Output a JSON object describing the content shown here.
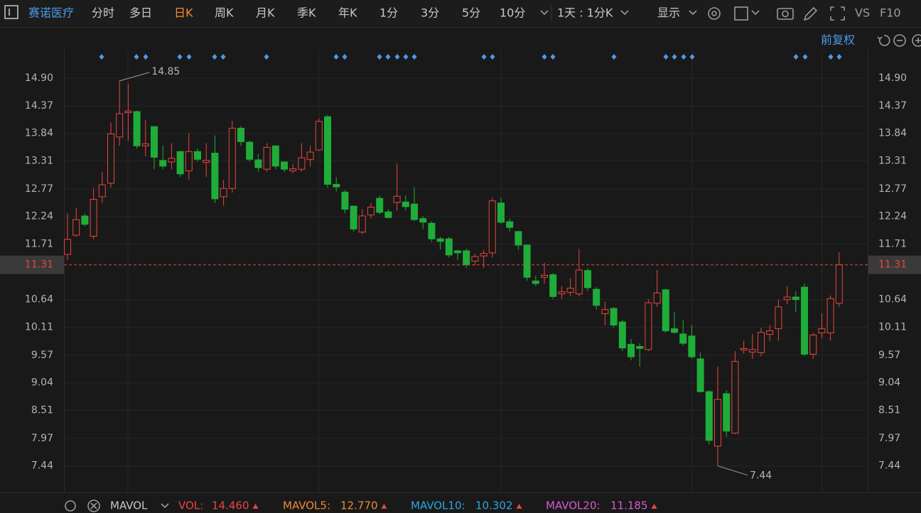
{
  "toolbar": {
    "stock": "赛诺医疗",
    "tabs": [
      "分时",
      "多日",
      "日K",
      "周K",
      "月K",
      "季K",
      "年K",
      "1分",
      "3分",
      "5分",
      "10分"
    ],
    "period": "1天 : 1分K",
    "display": "显示",
    "vs": "VS",
    "f10": "F10",
    "adjust": "前复权"
  },
  "indicator": {
    "name": "MAVOL",
    "items": [
      {
        "label": "VOL:",
        "value": "14.460",
        "color": "#e8463b"
      },
      {
        "label": "MAVOL5:",
        "value": "12.770",
        "color": "#f0892f"
      },
      {
        "label": "MAVOL10:",
        "value": "10.302",
        "color": "#2aa6e6"
      },
      {
        "label": "MAVOL20:",
        "value": "11.185",
        "color": "#d65bd6"
      }
    ]
  },
  "chart_data": {
    "type": "candlestick",
    "up_color": "#e8463b",
    "down_color": "#1fad3a",
    "grid": true,
    "ylim": [
      6.93,
      15.86
    ],
    "yticks": [
      {
        "value": 14.9,
        "label": "14.90"
      },
      14.37,
      13.84,
      13.31,
      12.77,
      12.24,
      11.71,
      10.64,
      10.11,
      9.57,
      9.04,
      8.51,
      7.97,
      7.44
    ],
    "open": [
      11.51,
      11.88,
      12.25,
      11.86,
      12.62,
      12.88,
      13.77,
      14.24,
      14.26,
      13.6,
      13.97,
      13.32,
      13.29,
      13.49,
      13.12,
      13.49,
      13.28,
      13.46,
      12.62,
      12.78,
      13.94,
      13.67,
      13.33,
      13.15,
      13.6,
      13.29,
      13.12,
      13.15,
      13.34,
      13.52,
      14.16,
      12.86,
      12.71,
      12.44,
      11.94,
      12.27,
      12.59,
      12.33,
      12.51,
      12.52,
      12.48,
      12.2,
      12.11,
      11.81,
      11.81,
      11.58,
      11.58,
      11.38,
      11.48,
      11.54,
      12.5,
      12.14,
      11.95,
      11.69,
      11.0,
      11.07,
      11.12,
      10.75,
      10.78,
      10.75,
      11.2,
      10.84,
      10.37,
      10.47,
      10.21,
      9.78,
      9.74,
      9.68,
      10.57,
      10.83,
      10.08,
      9.98,
      9.94,
      9.5,
      8.87,
      7.82,
      8.83,
      8.07,
      9.67,
      9.63,
      9.62,
      9.97,
      10.08,
      10.64,
      10.69,
      10.88,
      9.59,
      10.0,
      10.0,
      10.57
    ],
    "close": [
      11.8,
      12.18,
      12.09,
      12.57,
      12.85,
      13.83,
      14.22,
      14.27,
      13.6,
      13.64,
      13.38,
      13.21,
      13.36,
      13.06,
      13.49,
      13.34,
      13.32,
      12.58,
      12.78,
      13.94,
      13.68,
      13.34,
      13.18,
      13.57,
      13.21,
      13.15,
      13.16,
      13.37,
      13.48,
      14.07,
      12.86,
      12.81,
      12.38,
      12.0,
      12.25,
      12.42,
      12.32,
      12.22,
      12.63,
      12.43,
      12.18,
      12.13,
      11.81,
      11.76,
      11.5,
      11.54,
      11.31,
      11.47,
      11.53,
      12.54,
      12.13,
      12.03,
      11.69,
      11.07,
      10.95,
      11.11,
      10.7,
      10.79,
      10.86,
      11.21,
      10.87,
      10.53,
      10.45,
      10.15,
      9.71,
      9.54,
      9.7,
      10.58,
      10.77,
      10.04,
      10.01,
      9.8,
      9.54,
      8.87,
      7.93,
      8.72,
      8.11,
      9.45,
      9.7,
      9.68,
      10.01,
      10.04,
      10.5,
      10.69,
      10.64,
      9.59,
      9.96,
      10.08,
      10.66,
      11.31
    ],
    "high": [
      12.3,
      12.4,
      12.3,
      12.78,
      13.1,
      14.05,
      14.85,
      14.8,
      14.28,
      14.1,
      13.98,
      13.6,
      13.65,
      13.5,
      13.85,
      13.55,
      13.65,
      13.8,
      12.95,
      14.08,
      13.98,
      13.7,
      13.45,
      13.65,
      13.6,
      13.3,
      13.25,
      13.65,
      13.6,
      14.13,
      14.2,
      13.0,
      12.75,
      12.45,
      12.38,
      12.5,
      12.64,
      12.38,
      13.26,
      12.65,
      12.8,
      12.25,
      12.15,
      11.85,
      11.85,
      11.6,
      11.62,
      11.52,
      11.6,
      12.6,
      12.6,
      12.2,
      11.97,
      11.7,
      11.1,
      11.35,
      11.15,
      10.9,
      11.05,
      11.62,
      11.25,
      10.88,
      10.6,
      10.5,
      10.25,
      9.88,
      9.8,
      10.65,
      11.21,
      10.85,
      10.4,
      10.25,
      10.15,
      9.62,
      8.9,
      9.35,
      8.9,
      9.65,
      9.85,
      9.98,
      10.1,
      10.15,
      10.64,
      10.9,
      10.8,
      10.95,
      10.0,
      10.38,
      10.72,
      11.55
    ],
    "low": [
      11.4,
      11.85,
      12.05,
      11.8,
      12.5,
      12.8,
      13.6,
      13.7,
      13.55,
      13.4,
      13.15,
      13.15,
      13.15,
      13.0,
      12.95,
      13.3,
      13.0,
      12.5,
      12.45,
      12.7,
      13.6,
      13.3,
      13.1,
      13.1,
      13.15,
      13.1,
      13.07,
      13.1,
      13.2,
      13.5,
      12.8,
      12.72,
      12.3,
      11.95,
      11.9,
      12.2,
      12.28,
      12.2,
      12.35,
      12.35,
      12.15,
      12.0,
      11.75,
      11.6,
      11.45,
      11.4,
      11.25,
      11.3,
      11.25,
      11.45,
      12.1,
      11.95,
      11.6,
      11.0,
      10.9,
      10.95,
      10.65,
      10.65,
      10.7,
      10.7,
      10.8,
      10.45,
      10.15,
      10.1,
      9.65,
      9.47,
      9.35,
      9.65,
      10.5,
      10.0,
      9.98,
      9.75,
      9.5,
      8.85,
      7.85,
      7.44,
      8.0,
      8.05,
      9.6,
      9.5,
      9.55,
      9.84,
      9.85,
      10.55,
      10.4,
      9.55,
      9.5,
      9.9,
      9.85,
      10.5
    ]
  }
}
